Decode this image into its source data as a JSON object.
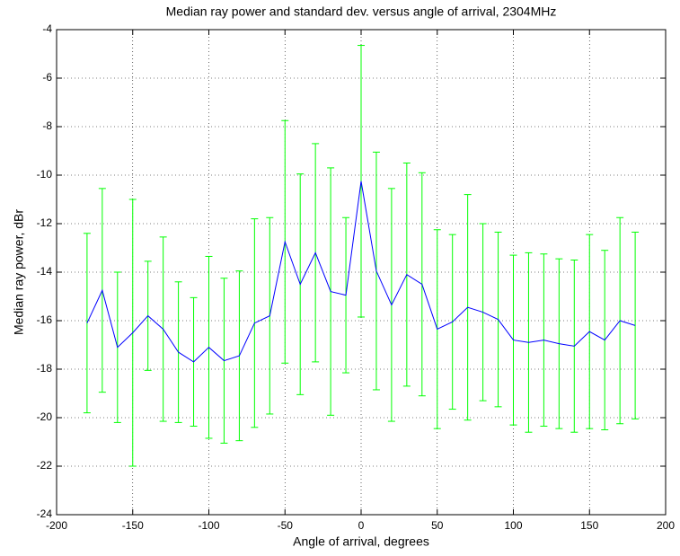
{
  "chart_data": {
    "type": "errorbar",
    "title": "Median ray power and  standard dev.  versus angle of arrival, 2304MHz",
    "x_label": "Angle of arrival, degrees",
    "y_label": "Median ray power, dBr",
    "x": [
      -180,
      -170,
      -160,
      -150,
      -140,
      -130,
      -120,
      -110,
      -100,
      -90,
      -80,
      -70,
      -60,
      -50,
      -40,
      -30,
      -20,
      -10,
      0,
      10,
      20,
      30,
      40,
      50,
      60,
      70,
      80,
      90,
      100,
      110,
      120,
      130,
      140,
      150,
      160,
      170,
      180
    ],
    "series": [
      {
        "color": "#0000ff",
        "error_color": "#00ff00",
        "values": [
          -16.1,
          -14.75,
          -17.1,
          -16.5,
          -15.8,
          -16.35,
          -17.3,
          -17.7,
          -17.1,
          -17.65,
          -17.45,
          -16.1,
          -15.8,
          -12.75,
          -14.5,
          -13.2,
          -14.8,
          -14.95,
          -10.25,
          -13.95,
          -15.35,
          -14.1,
          -14.5,
          -16.35,
          -16.05,
          -15.45,
          -15.65,
          -15.95,
          -16.8,
          -16.9,
          -16.8,
          -16.95,
          -17.05,
          -16.45,
          -16.8,
          -16.0,
          -16.2
        ],
        "errors": [
          3.7,
          4.2,
          3.1,
          5.5,
          2.25,
          3.8,
          2.9,
          2.65,
          3.75,
          3.4,
          3.5,
          4.3,
          4.05,
          5.0,
          4.55,
          4.5,
          5.1,
          3.2,
          5.6,
          4.9,
          4.8,
          4.6,
          4.6,
          4.1,
          3.6,
          4.65,
          3.65,
          3.6,
          3.5,
          3.7,
          3.55,
          3.5,
          3.55,
          4.0,
          3.7,
          4.25,
          3.85
        ]
      }
    ],
    "xlim": [
      -200,
      200
    ],
    "ylim": [
      -24,
      -4
    ],
    "xticks": [
      -200,
      -150,
      -100,
      -50,
      0,
      50,
      100,
      150,
      200
    ],
    "yticks": [
      -24,
      -22,
      -20,
      -18,
      -16,
      -14,
      -12,
      -10,
      -8,
      -6,
      -4
    ],
    "grid": true
  }
}
